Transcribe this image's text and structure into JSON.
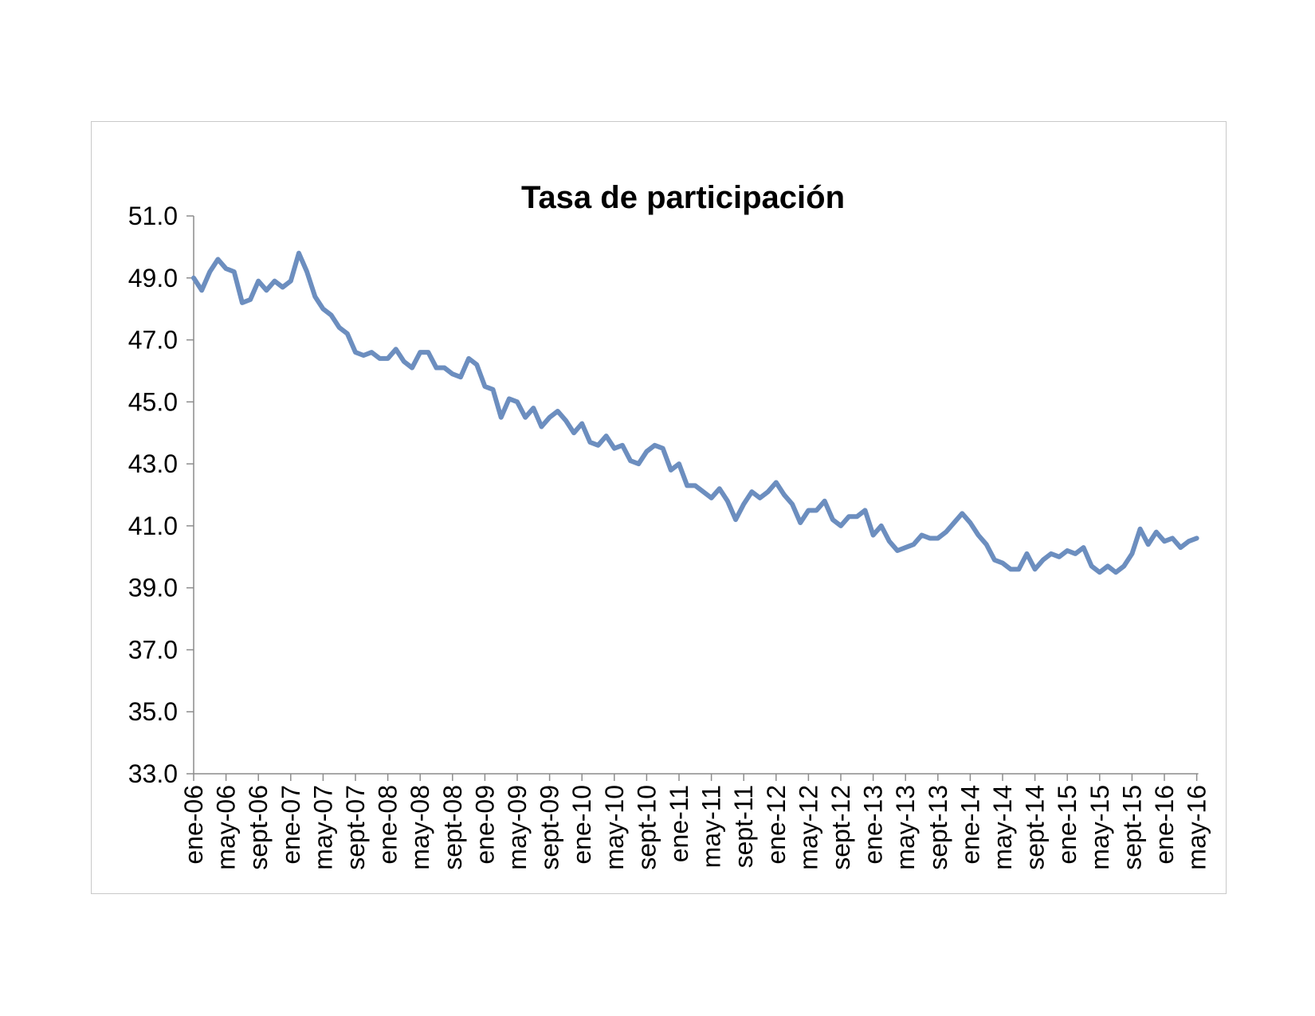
{
  "chart_data": {
    "type": "line",
    "title": "Tasa de participación",
    "xlabel": "",
    "ylabel": "",
    "ylim": [
      33.0,
      51.0
    ],
    "yticks": [
      "33.0",
      "35.0",
      "37.0",
      "39.0",
      "41.0",
      "43.0",
      "45.0",
      "47.0",
      "49.0",
      "51.0"
    ],
    "xtick_labels": [
      "ene-06",
      "may-06",
      "sept-06",
      "ene-07",
      "may-07",
      "sept-07",
      "ene-08",
      "may-08",
      "sept-08",
      "ene-09",
      "may-09",
      "sept-09",
      "ene-10",
      "may-10",
      "sept-10",
      "ene-11",
      "may-11",
      "sept-11",
      "ene-12",
      "may-12",
      "sept-12",
      "ene-13",
      "may-13",
      "sept-13",
      "ene-14",
      "may-14",
      "sept-14",
      "ene-15",
      "may-15",
      "sept-15",
      "ene-16",
      "may-16"
    ],
    "grid": false,
    "legend": "none",
    "series": [
      {
        "color": "#6c8ebf",
        "values": [
          49.0,
          48.6,
          49.2,
          49.6,
          49.3,
          49.2,
          48.2,
          48.3,
          48.9,
          48.6,
          48.9,
          48.7,
          48.9,
          49.8,
          49.2,
          48.4,
          48.0,
          47.8,
          47.4,
          47.2,
          46.6,
          46.5,
          46.6,
          46.4,
          46.4,
          46.7,
          46.3,
          46.1,
          46.6,
          46.6,
          46.1,
          46.1,
          45.9,
          45.8,
          46.4,
          46.2,
          45.5,
          45.4,
          44.5,
          45.1,
          45.0,
          44.5,
          44.8,
          44.2,
          44.5,
          44.7,
          44.4,
          44.0,
          44.3,
          43.7,
          43.6,
          43.9,
          43.5,
          43.6,
          43.1,
          43.0,
          43.4,
          43.6,
          43.5,
          42.8,
          43.0,
          42.3,
          42.3,
          42.1,
          41.9,
          42.2,
          41.8,
          41.2,
          41.7,
          42.1,
          41.9,
          42.1,
          42.4,
          42.0,
          41.7,
          41.1,
          41.5,
          41.5,
          41.8,
          41.2,
          41.0,
          41.3,
          41.3,
          41.5,
          40.7,
          41.0,
          40.5,
          40.2,
          40.3,
          40.4,
          40.7,
          40.6,
          40.6,
          40.8,
          41.1,
          41.4,
          41.1,
          40.7,
          40.4,
          39.9,
          39.8,
          39.6,
          39.6,
          40.1,
          39.6,
          39.9,
          40.1,
          40.0,
          40.2,
          40.1,
          40.3,
          39.7,
          39.5,
          39.7,
          39.5,
          39.7,
          40.1,
          40.9,
          40.4,
          40.8,
          40.5,
          40.6,
          40.3,
          40.5,
          40.6
        ]
      }
    ]
  }
}
